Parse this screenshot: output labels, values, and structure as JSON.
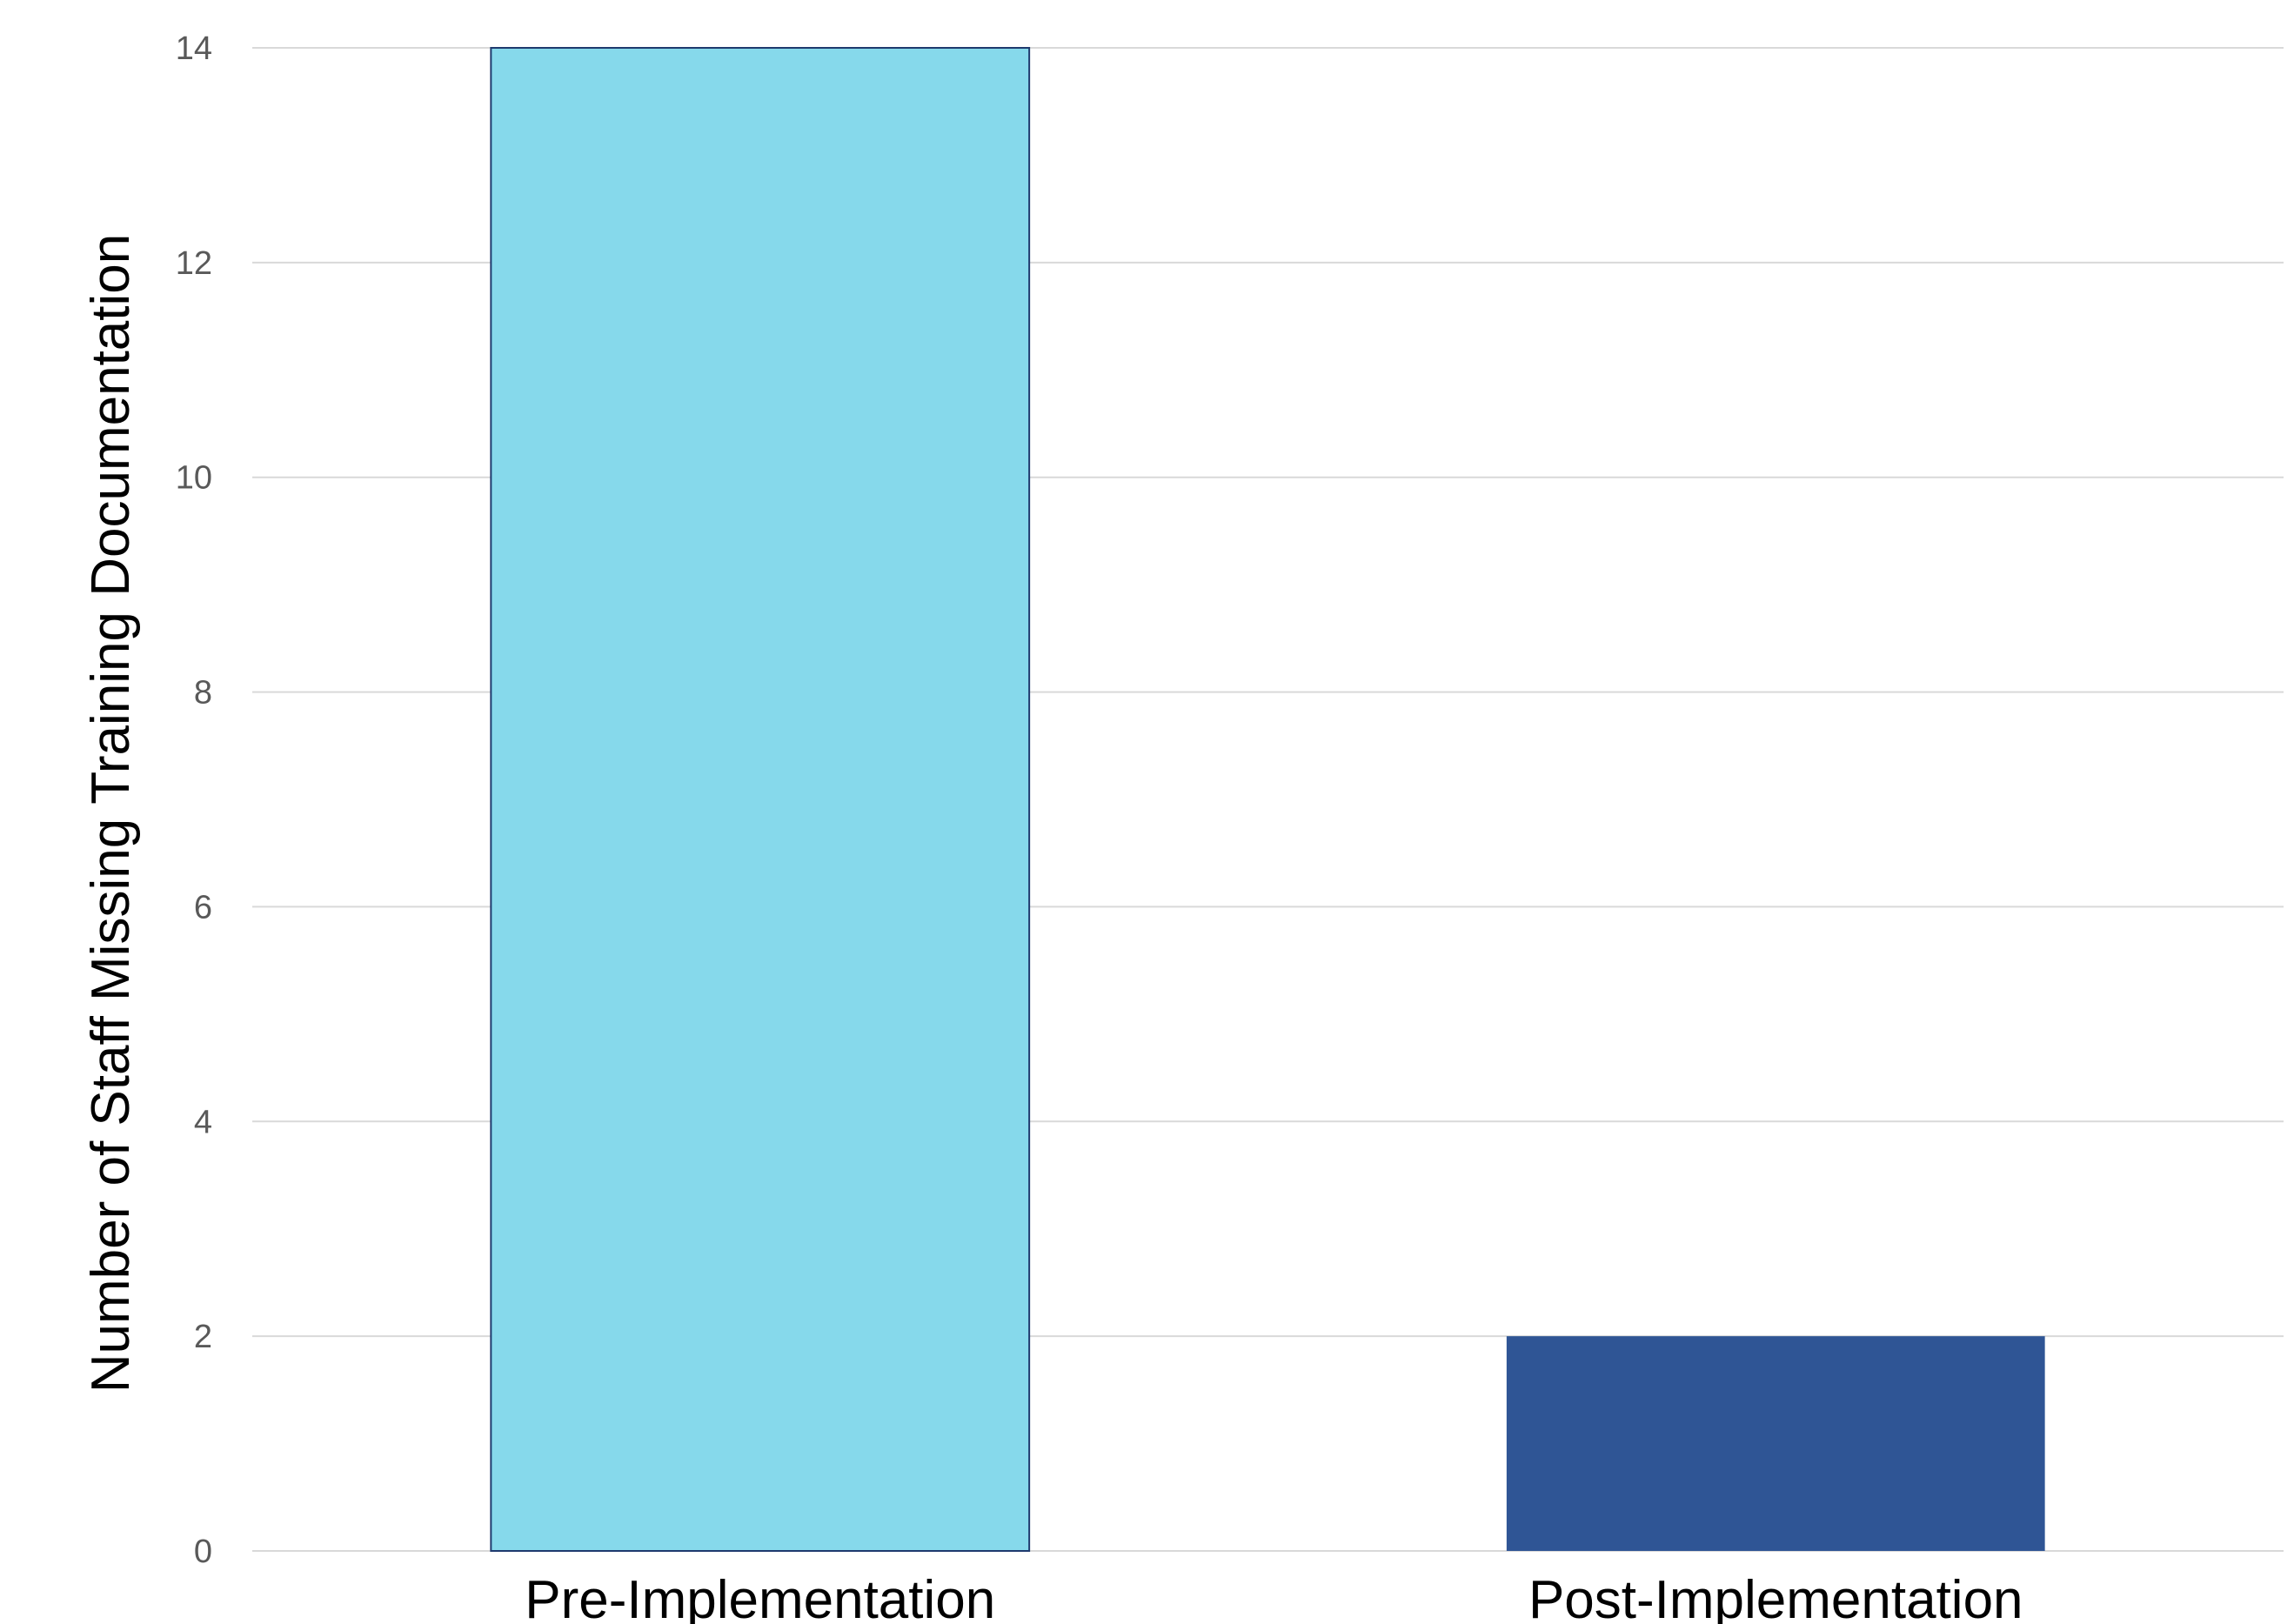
{
  "chart_data": {
    "type": "bar",
    "title": "",
    "xlabel": "",
    "ylabel": "Number of Staff Missing Training Documentation",
    "categories": [
      "Pre-Implementation",
      "Post-Implementation"
    ],
    "values": [
      14,
      2
    ],
    "bar_colors": [
      "#86d9eb",
      "#2f5595"
    ],
    "bar_outline": "#1f3a6e",
    "ylim": [
      0,
      14
    ],
    "yticks": [
      0,
      2,
      4,
      6,
      8,
      10,
      12,
      14
    ],
    "grid": true,
    "legend": "none"
  }
}
